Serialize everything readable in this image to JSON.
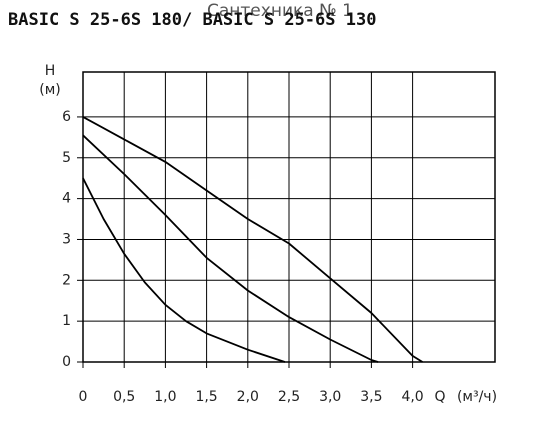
{
  "chart_data": {
    "type": "line",
    "title": "BASIC S 25-6S 180/ BASIC S 25-6S 130",
    "watermark": "Сантехника № 1",
    "y_label": "H",
    "y_unit": "(м)",
    "x_label": "Q",
    "x_unit": "(м³/ч)",
    "xlim": [
      0,
      5
    ],
    "ylim": [
      0,
      7.1
    ],
    "xticks": [
      0,
      {
        "value": 0.5,
        "label": "0,5"
      },
      {
        "value": 1.0,
        "label": "1,0"
      },
      {
        "value": 1.5,
        "label": "1,5"
      },
      {
        "value": 2.0,
        "label": "2,0"
      },
      {
        "value": 2.5,
        "label": "2,5"
      },
      {
        "value": 3.0,
        "label": "3,0"
      },
      {
        "value": 3.5,
        "label": "3,5"
      },
      {
        "value": 4.0,
        "label": "4,0"
      }
    ],
    "yticks": [
      0,
      1,
      2,
      3,
      4,
      5,
      6
    ],
    "grid": true,
    "series": [
      {
        "color": "#000000",
        "x": [
          0,
          0.5,
          1.0,
          1.5,
          2.0,
          2.5,
          3.0,
          3.5,
          4.0,
          4.12
        ],
        "values": [
          6.0,
          5.45,
          4.9,
          4.2,
          3.5,
          2.9,
          2.05,
          1.2,
          0.15,
          0
        ]
      },
      {
        "color": "#000000",
        "x": [
          0,
          0.5,
          1.0,
          1.5,
          2.0,
          2.5,
          3.0,
          3.5,
          3.58
        ],
        "values": [
          5.55,
          4.6,
          3.6,
          2.55,
          1.75,
          1.1,
          0.55,
          0.05,
          0
        ]
      },
      {
        "color": "#000000",
        "x": [
          0,
          0.25,
          0.5,
          0.75,
          1.0,
          1.25,
          1.5,
          2.0,
          2.45
        ],
        "values": [
          4.5,
          3.5,
          2.65,
          1.95,
          1.4,
          1.0,
          0.7,
          0.3,
          0
        ]
      }
    ]
  }
}
